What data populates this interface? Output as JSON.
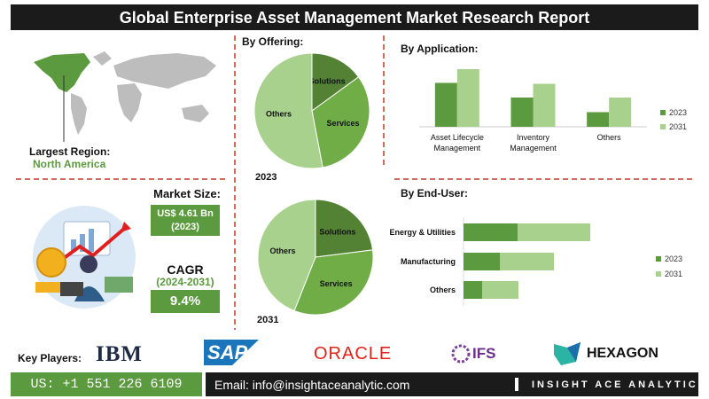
{
  "header": {
    "title": "Global Enterprise Asset Management Market Research Report"
  },
  "largest_region": {
    "label": "Largest Region:",
    "value": "North America"
  },
  "market_size": {
    "label": "Market Size:",
    "value": "US$ 4.61 Bn",
    "year": "(2023)"
  },
  "cagr": {
    "label": "CAGR",
    "period": "(2024-2031)",
    "value": "9.4%"
  },
  "chart_data": [
    {
      "type": "pie",
      "title": "By Offering:",
      "categories": [
        "Solutions",
        "Services",
        "Others"
      ],
      "colors": [
        "#548235",
        "#70ad47",
        "#a9d18e"
      ],
      "series": [
        {
          "name": "2023",
          "values": [
            15,
            32,
            53
          ]
        },
        {
          "name": "2031",
          "values": [
            23,
            33,
            44
          ]
        }
      ]
    },
    {
      "type": "bar",
      "title": "By Application:",
      "categories": [
        "Asset Lifecycle Management",
        "Inventory Management",
        "Others"
      ],
      "series": [
        {
          "name": "2023",
          "color": "#5b9a3e",
          "values": [
            48,
            32,
            16
          ]
        },
        {
          "name": "2031",
          "color": "#a9d18e",
          "values": [
            63,
            47,
            32
          ]
        }
      ]
    },
    {
      "type": "hbar-stacked",
      "title": "By End-User:",
      "categories": [
        "Energy & Utilities",
        "Manufacturing",
        "Others"
      ],
      "series": [
        {
          "name": "2023",
          "color": "#5b9a3e",
          "values": [
            61,
            41,
            21
          ]
        },
        {
          "name": "2031",
          "color": "#a9d18e",
          "values": [
            82,
            61,
            41
          ]
        }
      ]
    }
  ],
  "key_players": {
    "label": "Key Players:",
    "names": [
      "IBM",
      "SAP",
      "ORACLE",
      "IFS",
      "HEXAGON"
    ]
  },
  "footer": {
    "phone": "US: +1 551 226 6109",
    "email": "Email: info@insightaceanalytic.com",
    "brand": "INSIGHT ACE ANALYTIC"
  }
}
